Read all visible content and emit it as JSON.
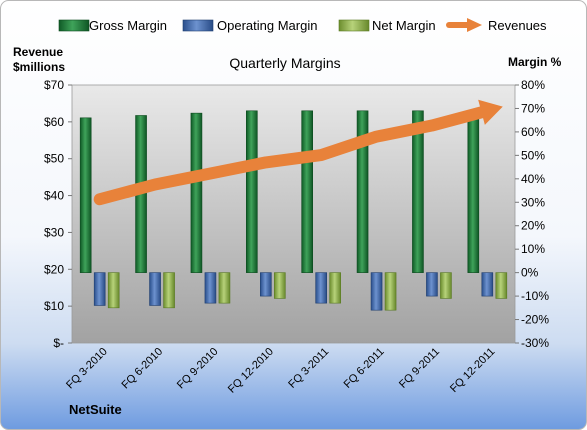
{
  "company": "NetSuite",
  "left_axis_title_line1": "Revenue",
  "left_axis_title_line2": "$millions",
  "right_axis_title": "Margin %",
  "legend": [
    {
      "label": "Gross Margin",
      "color": "#1e7b3a"
    },
    {
      "label": "Operating Margin",
      "color": "#3c66a8"
    },
    {
      "label": "Net Margin",
      "color": "#8fb04a"
    },
    {
      "label": "Revenues",
      "color": "#e8823a"
    }
  ],
  "chart_data": {
    "type": "bar",
    "title": "Quarterly Margins",
    "categories": [
      "FQ 3-2010",
      "FQ 6-2010",
      "FQ 9-2010",
      "FQ 12-2010",
      "FQ 3-2011",
      "FQ 6-2011",
      "FQ 9-2011",
      "FQ 12-2011"
    ],
    "series": [
      {
        "name": "Gross Margin",
        "axis": "right",
        "color": "#1e7b3a",
        "values": [
          66,
          67,
          68,
          69,
          69,
          69,
          69,
          69
        ]
      },
      {
        "name": "Operating Margin",
        "axis": "right",
        "color": "#3c66a8",
        "values": [
          -14,
          -14,
          -13,
          -10,
          -13,
          -16,
          -10,
          -10
        ]
      },
      {
        "name": "Net Margin",
        "axis": "right",
        "color": "#8fb04a",
        "values": [
          -15,
          -15,
          -13,
          -11,
          -13,
          -16,
          -11,
          -11
        ]
      },
      {
        "name": "Revenues",
        "axis": "left",
        "type": "line",
        "color": "#e8823a",
        "values": [
          39,
          43,
          46,
          49,
          51,
          56,
          59,
          63
        ]
      }
    ],
    "left_axis": {
      "ticks": [
        "$-",
        "$10",
        "$20",
        "$30",
        "$40",
        "$50",
        "$60",
        "$70"
      ],
      "ylim": [
        0,
        70
      ]
    },
    "right_axis": {
      "ticks": [
        "-30%",
        "-20%",
        "-10%",
        "0%",
        "10%",
        "20%",
        "30%",
        "40%",
        "50%",
        "60%",
        "70%",
        "80%"
      ],
      "ylim": [
        -30,
        80
      ]
    },
    "grid": false,
    "legend_position": "top"
  }
}
